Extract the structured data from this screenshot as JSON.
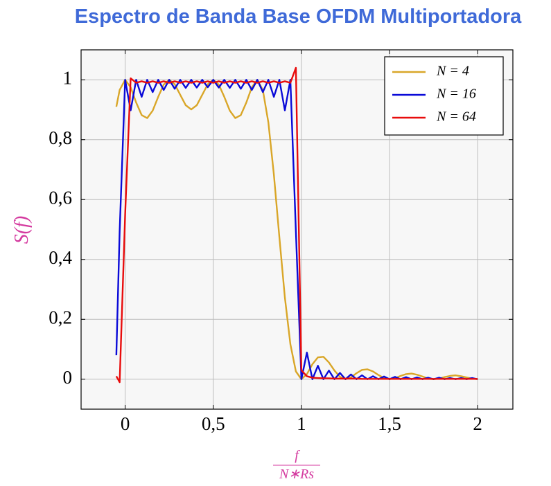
{
  "chart_data": {
    "type": "line",
    "title": "Espectro de Banda Base OFDM Multiportadora",
    "ylabel": "S(f)",
    "xlabel": {
      "numerator": "f",
      "denominator": "N∗Rs"
    },
    "x": [
      -0.05,
      -0.03125,
      0,
      0.03125,
      0.0625,
      0.09375,
      0.125,
      0.15625,
      0.1875,
      0.21875,
      0.25,
      0.28125,
      0.3125,
      0.34375,
      0.375,
      0.40625,
      0.4375,
      0.46875,
      0.5,
      0.53125,
      0.5625,
      0.59375,
      0.625,
      0.65625,
      0.6875,
      0.71875,
      0.75,
      0.78125,
      0.8125,
      0.84375,
      0.875,
      0.90625,
      0.9375,
      0.96875,
      1,
      1.03125,
      1.0625,
      1.09375,
      1.125,
      1.15625,
      1.1875,
      1.21875,
      1.25,
      1.28125,
      1.3125,
      1.34375,
      1.375,
      1.40625,
      1.4375,
      1.46875,
      1.5,
      1.53125,
      1.5625,
      1.59375,
      1.625,
      1.65625,
      1.6875,
      1.71875,
      1.75,
      1.78125,
      1.8125,
      1.84375,
      1.875,
      1.90625,
      1.9375,
      1.96875,
      2
    ],
    "series": [
      {
        "name": "N = 4",
        "color": "#d9a628",
        "values": [
          0.91,
          0.966,
          1,
          0.975,
          0.924,
          0.882,
          0.872,
          0.897,
          0.943,
          0.984,
          1,
          0.985,
          0.95,
          0.915,
          0.901,
          0.915,
          0.95,
          0.985,
          1,
          0.984,
          0.943,
          0.897,
          0.872,
          0.882,
          0.924,
          0.975,
          1,
          0.966,
          0.858,
          0.684,
          0.475,
          0.273,
          0.117,
          0.026,
          0,
          0.017,
          0.05,
          0.073,
          0.075,
          0.056,
          0.029,
          0.008,
          0,
          0.006,
          0.02,
          0.031,
          0.033,
          0.026,
          0.014,
          0.004,
          0,
          0.003,
          0.011,
          0.017,
          0.019,
          0.015,
          0.009,
          0.002,
          0,
          0.002,
          0.007,
          0.011,
          0.013,
          0.01,
          0.006,
          0.002,
          0
        ]
      },
      {
        "name": "N = 16",
        "color": "#0a0ad8",
        "values": [
          0.08,
          0.494,
          1,
          0.898,
          1,
          0.943,
          1,
          0.959,
          1,
          0.966,
          1,
          0.97,
          1,
          0.973,
          1,
          0.974,
          1,
          0.975,
          1,
          0.974,
          1,
          0.973,
          1,
          0.97,
          1,
          0.966,
          1,
          0.959,
          1,
          0.943,
          1,
          0.898,
          1,
          0.494,
          0,
          0.089,
          0,
          0.045,
          0,
          0.029,
          0,
          0.021,
          0,
          0.016,
          0,
          0.013,
          0,
          0.01,
          0,
          0.009,
          0,
          0.008,
          0,
          0.007,
          0,
          0.006,
          0,
          0.005,
          0,
          0.005,
          0,
          0.004,
          0,
          0.004,
          0,
          0.004,
          0
        ]
      },
      {
        "name": "N = 64",
        "color": "#e80c0c",
        "values": [
          0.01,
          -0.01,
          0.55,
          1.005,
          0.99,
          0.995,
          0.99,
          0.995,
          0.99,
          0.995,
          0.99,
          0.995,
          0.99,
          0.995,
          0.99,
          0.995,
          0.99,
          0.995,
          0.99,
          0.995,
          0.99,
          0.995,
          0.99,
          0.995,
          0.99,
          0.995,
          0.99,
          0.995,
          0.99,
          0.995,
          0.99,
          0.995,
          0.99,
          1.04,
          0.03,
          0.01,
          0.005,
          0.004,
          0.003,
          0.003,
          0.002,
          0.002,
          0.002,
          0.002,
          0.002,
          0.001,
          0.001,
          0.001,
          0.001,
          0.001,
          0.001,
          0.001,
          0.001,
          0.001,
          0.001,
          0.001,
          0.001,
          0.001,
          0.001,
          0.001,
          0.001,
          0.001,
          0.001,
          0.001,
          0.001,
          0.001,
          0.001
        ]
      }
    ],
    "xlim": [
      -0.25,
      2.2
    ],
    "ylim": [
      -0.1,
      1.1
    ],
    "xticks": [
      0,
      {
        "value": 0.5,
        "label": "0,5"
      },
      1,
      {
        "value": 1.5,
        "label": "1,5"
      },
      2
    ],
    "yticks": [
      0,
      {
        "value": 0.2,
        "label": "0,2"
      },
      {
        "value": 0.4,
        "label": "0,4"
      },
      {
        "value": 0.6,
        "label": "0,6"
      },
      {
        "value": 0.8,
        "label": "0,8"
      },
      1
    ],
    "grid": true,
    "legend": "north east"
  }
}
